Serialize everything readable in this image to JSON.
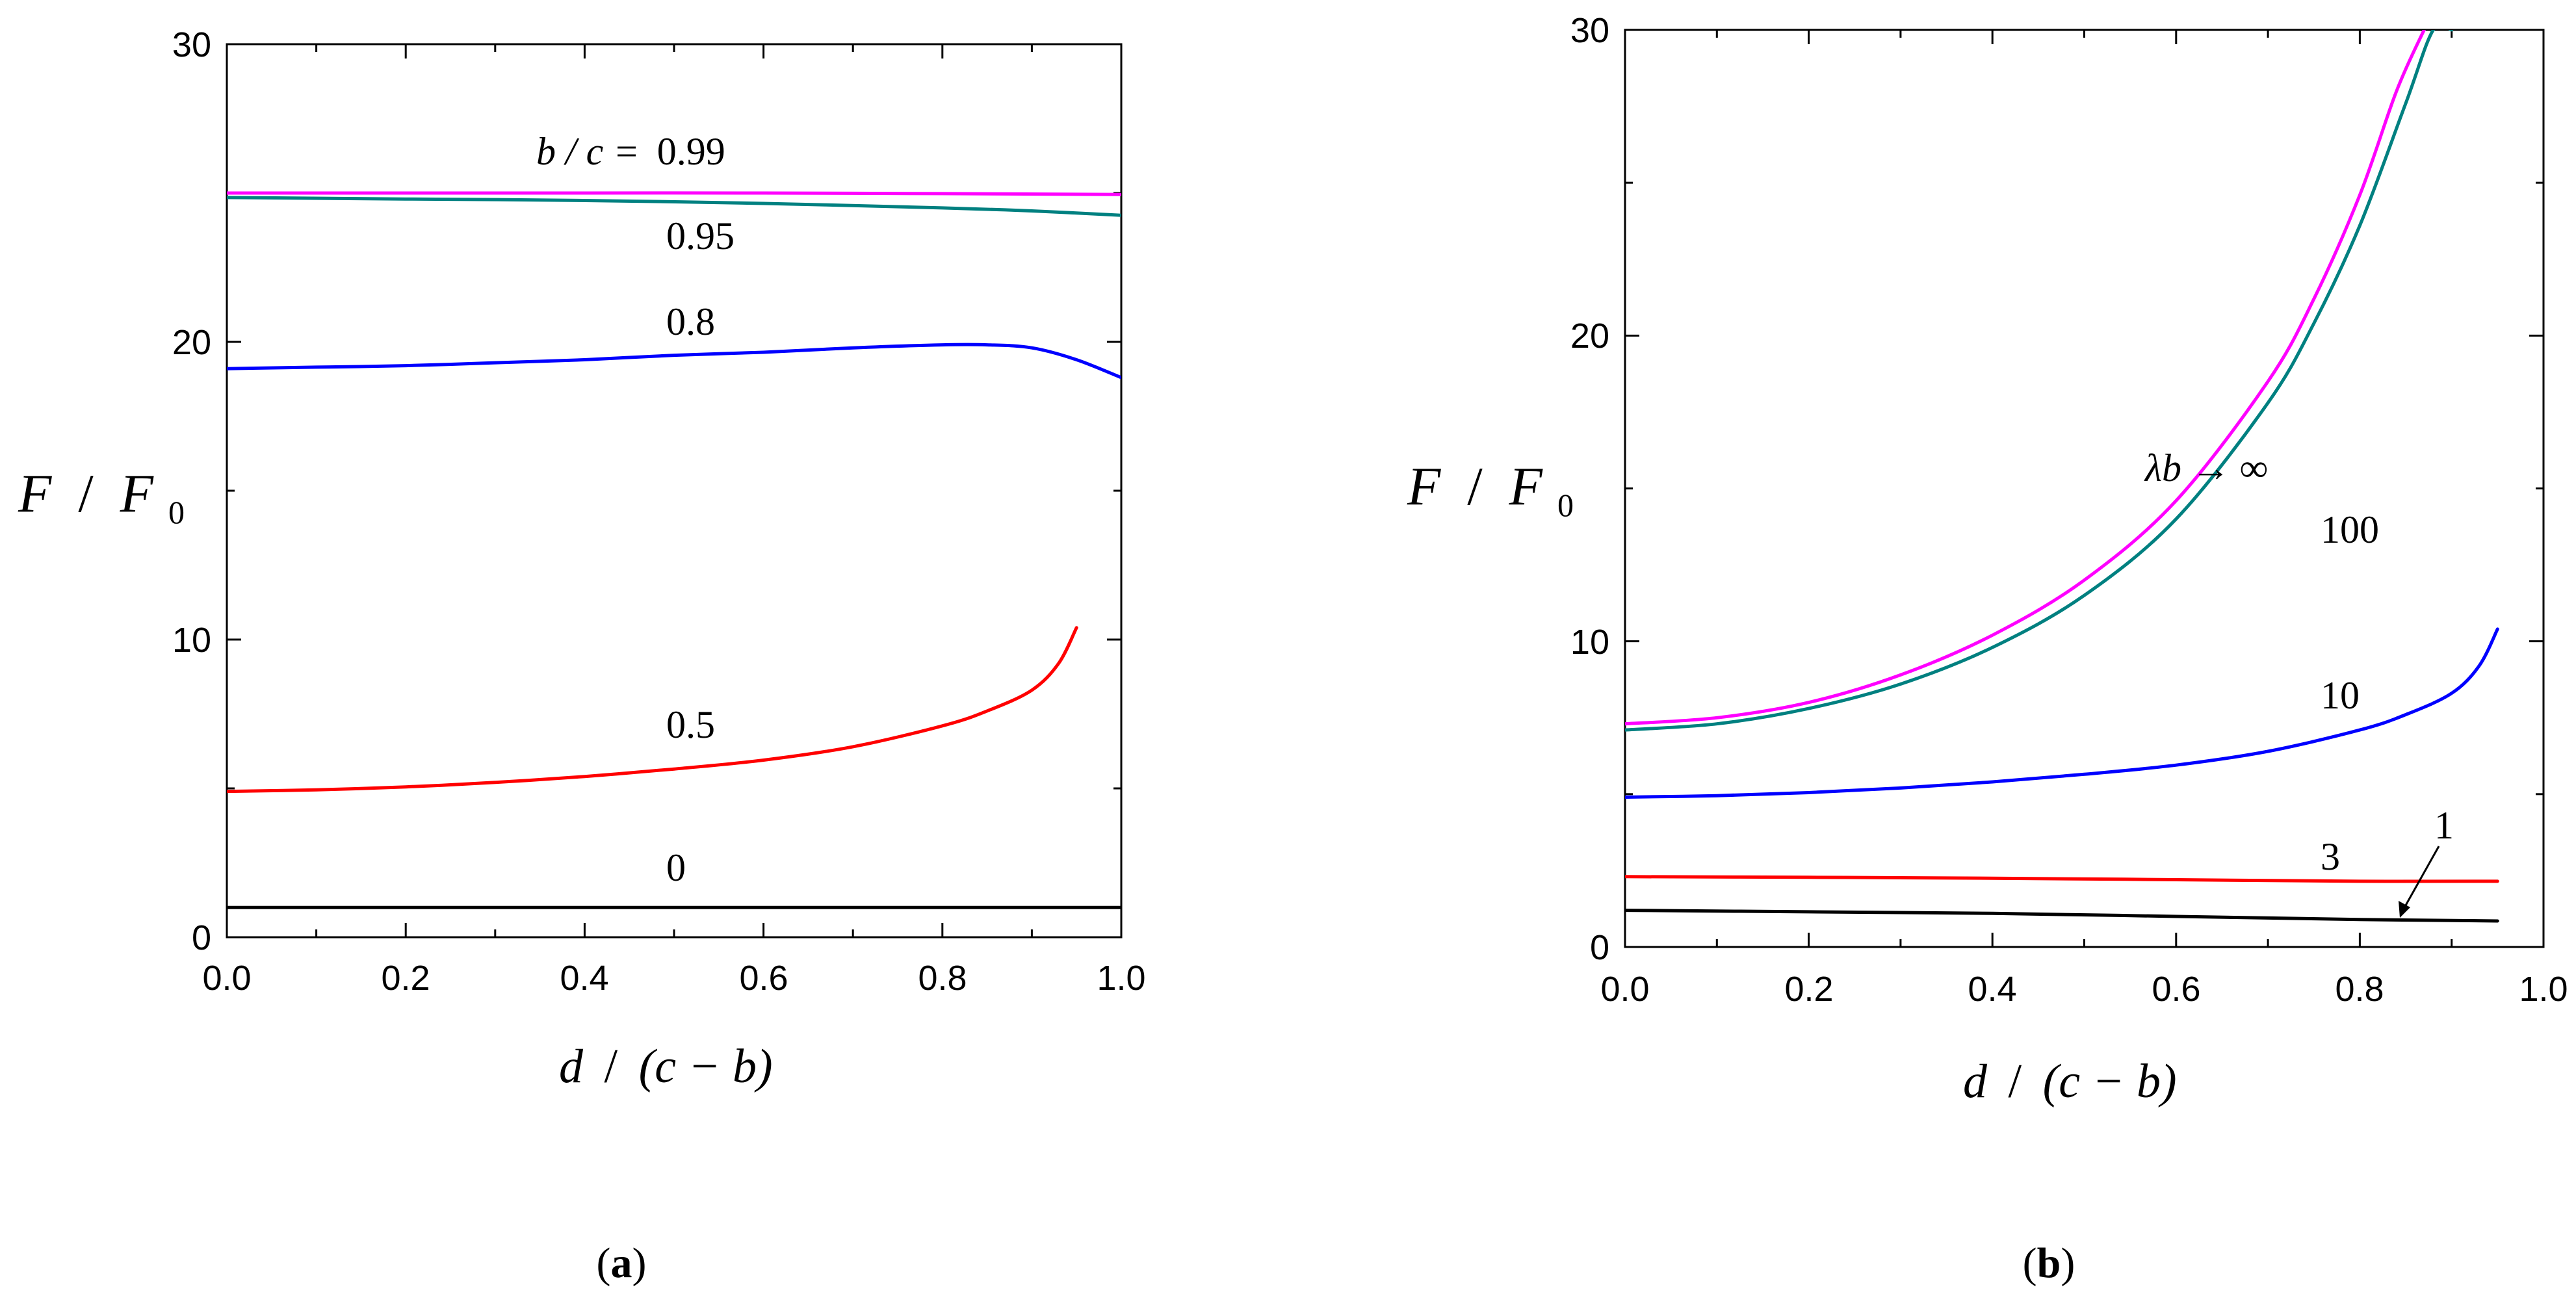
{
  "colors": {
    "black": "#000000",
    "red": "#ff0000",
    "blue": "#0000ff",
    "teal": "#008080",
    "magenta": "#ff00ff"
  },
  "chart_data": [
    {
      "panel": "a",
      "panel_label": "a",
      "type": "line",
      "xlabel": {
        "num": "d",
        "den": "(c − b)"
      },
      "ylabel": {
        "num": "F",
        "den": "F",
        "sub": "0"
      },
      "xlim": [
        0,
        1
      ],
      "ylim": [
        0,
        30
      ],
      "xticks": [
        "0.0",
        "0.2",
        "0.4",
        "0.6",
        "0.8",
        "1.0"
      ],
      "yticks": [
        "0",
        "10",
        "20",
        "30"
      ],
      "series": [
        {
          "name": "0",
          "label": "0",
          "color": "#000000",
          "x": [
            0,
            0.2,
            0.4,
            0.6,
            0.8,
            1.0
          ],
          "y": [
            1,
            1,
            1,
            1,
            1,
            1
          ]
        },
        {
          "name": "0.5",
          "label": "0.5",
          "color": "#ff0000",
          "x": [
            0,
            0.1,
            0.2,
            0.3,
            0.4,
            0.5,
            0.6,
            0.7,
            0.8,
            0.85,
            0.9,
            0.93,
            0.95
          ],
          "y": [
            4.9,
            4.95,
            5.05,
            5.2,
            5.4,
            5.65,
            5.95,
            6.4,
            7.1,
            7.6,
            8.3,
            9.2,
            10.4
          ]
        },
        {
          "name": "0.8",
          "label": "0.8",
          "color": "#0000ff",
          "x": [
            0,
            0.1,
            0.2,
            0.3,
            0.4,
            0.5,
            0.6,
            0.7,
            0.8,
            0.85,
            0.9,
            0.95,
            1.0
          ],
          "y": [
            19.1,
            19.15,
            19.2,
            19.3,
            19.4,
            19.55,
            19.65,
            19.8,
            19.9,
            19.9,
            19.8,
            19.4,
            18.8
          ]
        },
        {
          "name": "0.95",
          "label": "0.95",
          "color": "#008080",
          "x": [
            0,
            0.2,
            0.4,
            0.6,
            0.8,
            0.9,
            1.0
          ],
          "y": [
            24.85,
            24.8,
            24.75,
            24.65,
            24.5,
            24.4,
            24.25
          ]
        },
        {
          "name": "0.99",
          "label": "0.99",
          "label_prefix": "b / c =",
          "color": "#ff00ff",
          "x": [
            0,
            0.2,
            0.4,
            0.6,
            0.8,
            1.0
          ],
          "y": [
            25.0,
            25.0,
            25.0,
            25.0,
            24.98,
            24.95
          ]
        }
      ]
    },
    {
      "panel": "b",
      "panel_label": "b",
      "type": "line",
      "xlabel": {
        "num": "d",
        "den": "(c − b)"
      },
      "ylabel": {
        "num": "F",
        "den": "F",
        "sub": "0"
      },
      "xlim": [
        0,
        1
      ],
      "ylim": [
        0,
        30
      ],
      "xticks": [
        "0.0",
        "0.2",
        "0.4",
        "0.6",
        "0.8",
        "1.0"
      ],
      "yticks": [
        "0",
        "10",
        "20",
        "30"
      ],
      "series": [
        {
          "name": "1",
          "label": "1",
          "color": "#000000",
          "x": [
            0,
            0.2,
            0.4,
            0.6,
            0.8,
            0.95
          ],
          "y": [
            1.2,
            1.15,
            1.1,
            1.0,
            0.9,
            0.85
          ]
        },
        {
          "name": "3",
          "label": "3",
          "color": "#ff0000",
          "x": [
            0,
            0.2,
            0.4,
            0.6,
            0.8,
            0.95
          ],
          "y": [
            2.3,
            2.28,
            2.25,
            2.2,
            2.15,
            2.15
          ]
        },
        {
          "name": "10",
          "label": "10",
          "color": "#0000ff",
          "x": [
            0,
            0.1,
            0.2,
            0.3,
            0.4,
            0.5,
            0.6,
            0.7,
            0.8,
            0.85,
            0.9,
            0.93,
            0.95
          ],
          "y": [
            4.9,
            4.95,
            5.05,
            5.2,
            5.4,
            5.65,
            5.95,
            6.4,
            7.1,
            7.6,
            8.3,
            9.2,
            10.4
          ]
        },
        {
          "name": "100",
          "label": "100",
          "color": "#008080",
          "x": [
            0,
            0.1,
            0.2,
            0.3,
            0.4,
            0.5,
            0.6,
            0.7,
            0.75,
            0.8,
            0.85,
            0.88,
            0.9
          ],
          "y": [
            7.1,
            7.3,
            7.8,
            8.6,
            9.8,
            11.5,
            14.0,
            17.8,
            20.4,
            23.6,
            27.6,
            30.0,
            30.0
          ]
        },
        {
          "name": "inf",
          "label": "λb → ∞",
          "color": "#ff00ff",
          "x": [
            0,
            0.1,
            0.2,
            0.3,
            0.4,
            0.5,
            0.6,
            0.7,
            0.75,
            0.8,
            0.84,
            0.87
          ],
          "y": [
            7.3,
            7.5,
            8.0,
            8.9,
            10.2,
            12.0,
            14.6,
            18.5,
            21.2,
            24.6,
            28.0,
            30.0
          ]
        }
      ]
    }
  ]
}
